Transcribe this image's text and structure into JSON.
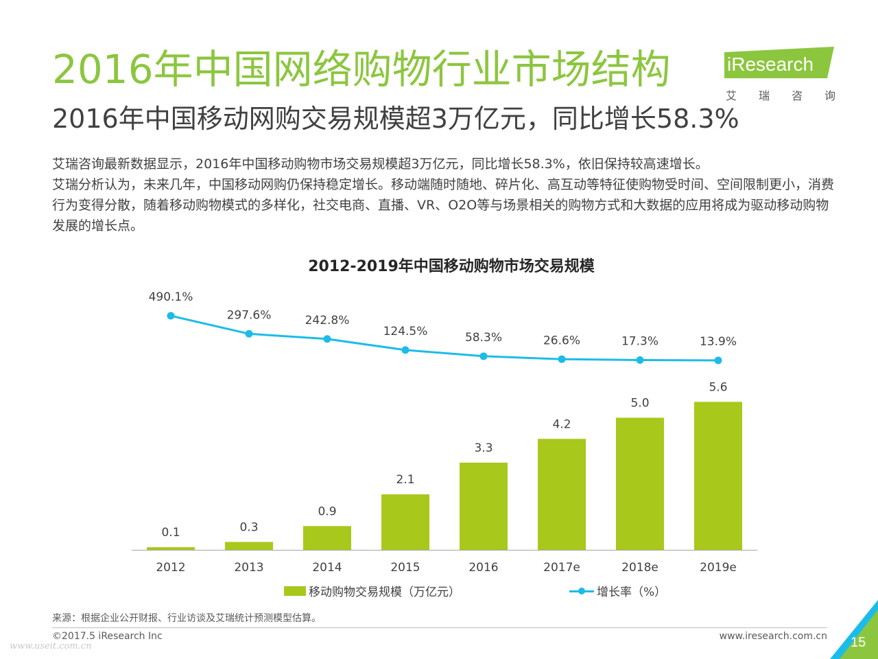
{
  "header": {
    "title": "2016年中国网络购物行业市场结构",
    "subtitle": "2016年中国移动网购交易规模超3万亿元，同比增长58.3%"
  },
  "logo": {
    "brand": "iResearch",
    "cn": [
      "艾",
      "瑞",
      "咨",
      "询"
    ]
  },
  "body": {
    "paragraphs": [
      "艾瑞咨询最新数据显示，2016年中国移动购物市场交易规模超3万亿元，同比增长58.3%，依旧保持较高速增长。",
      "艾瑞分析认为，未来几年，中国移动网购仍保持稳定增长。移动端随时随地、碎片化、高互动等特征使购物受时间、空间限制更小，消费行为变得分散，随着移动购物模式的多样化，社交电商、直播、VR、O2O等与场景相关的购物方式和大数据的应用将成为驱动移动购物发展的增长点。"
    ]
  },
  "chart_data": {
    "type": "bar",
    "title": "2012-2019年中国移动购物市场交易规模",
    "categories": [
      "2012",
      "2013",
      "2014",
      "2015",
      "2016",
      "2017e",
      "2018e",
      "2019e"
    ],
    "series": [
      {
        "name": "移动购物交易规模（万亿元）",
        "type": "bar",
        "values": [
          0.1,
          0.3,
          0.9,
          2.1,
          3.3,
          4.2,
          5.0,
          5.6
        ],
        "labels": [
          "0.1",
          "0.3",
          "0.9",
          "2.1",
          "3.3",
          "4.2",
          "5.0",
          "5.6"
        ],
        "color": "#a8c81c"
      },
      {
        "name": "增长率（%）",
        "type": "line",
        "values": [
          490.1,
          297.6,
          242.8,
          124.5,
          58.3,
          26.6,
          17.3,
          13.9
        ],
        "labels": [
          "490.1%",
          "297.6%",
          "242.8%",
          "124.5%",
          "58.3%",
          "26.6%",
          "17.3%",
          "13.9%"
        ],
        "color": "#1cbce8"
      }
    ],
    "grid": false,
    "legend_position": "bottom"
  },
  "footer": {
    "source": "来源：根据企业公开财报、行业访谈及艾瑞统计预测模型估算。",
    "copyright": "©2017.5 iResearch Inc",
    "website": "www.iresearch.com.cn",
    "page_number": "15",
    "watermark": "www.useit.com.cn"
  },
  "colors": {
    "title_green": "#8cc63f",
    "bar_green": "#a8c81c",
    "line_blue": "#1cbce8",
    "corner_green": "#8cc63f",
    "corner_blue": "#1cbce8"
  }
}
